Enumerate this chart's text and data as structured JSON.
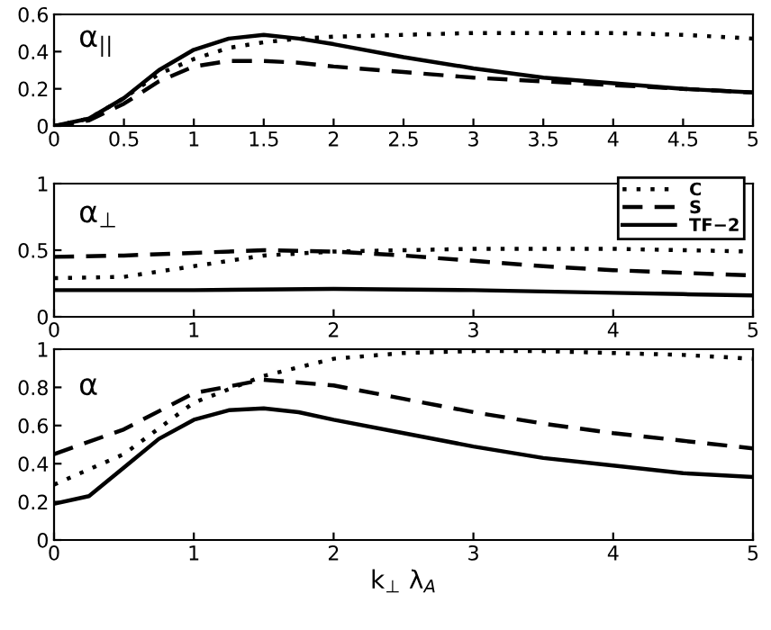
{
  "chart_data": [
    {
      "type": "line",
      "annotations": [
        "α$_{||}$"
      ],
      "xlim": [
        0,
        5
      ],
      "ylim": [
        0,
        0.6
      ],
      "xticks": [
        0,
        0.5,
        1,
        1.5,
        2,
        2.5,
        3,
        3.5,
        4,
        4.5,
        5
      ],
      "yticks": [
        0,
        0.2,
        0.4,
        0.6
      ],
      "grid": false,
      "legend": false,
      "series": [
        {
          "color": "#000000",
          "line_style": "dotted",
          "x": [
            0,
            0.25,
            0.5,
            0.75,
            1,
            1.25,
            1.5,
            1.75,
            2,
            2.5,
            3,
            3.5,
            4,
            4.5,
            5
          ],
          "values": [
            0,
            0.04,
            0.15,
            0.28,
            0.36,
            0.42,
            0.45,
            0.47,
            0.48,
            0.49,
            0.5,
            0.5,
            0.5,
            0.49,
            0.47
          ]
        },
        {
          "color": "#000000",
          "line_style": "dashed",
          "x": [
            0,
            0.25,
            0.5,
            0.75,
            1,
            1.25,
            1.5,
            1.75,
            2,
            2.5,
            3,
            3.5,
            4,
            4.5,
            5
          ],
          "values": [
            0,
            0.03,
            0.12,
            0.24,
            0.32,
            0.35,
            0.35,
            0.34,
            0.32,
            0.29,
            0.26,
            0.24,
            0.22,
            0.2,
            0.18
          ]
        },
        {
          "color": "#000000",
          "line_style": "solid",
          "x": [
            0,
            0.25,
            0.5,
            0.75,
            1,
            1.25,
            1.5,
            1.75,
            2,
            2.5,
            3,
            3.5,
            4,
            4.5,
            5
          ],
          "values": [
            0,
            0.04,
            0.15,
            0.3,
            0.41,
            0.47,
            0.49,
            0.47,
            0.44,
            0.37,
            0.31,
            0.26,
            0.23,
            0.2,
            0.18
          ]
        }
      ]
    },
    {
      "type": "line",
      "annotations": [
        "α$_{⊥}$"
      ],
      "xlim": [
        0,
        5
      ],
      "ylim": [
        0,
        1
      ],
      "xticks": [
        0,
        1,
        2,
        3,
        4,
        5
      ],
      "yticks": [
        0,
        0.5,
        1
      ],
      "grid": false,
      "legend": "top right",
      "series": [
        {
          "name": "C",
          "color": "#000000",
          "line_style": "dotted",
          "x": [
            0,
            0.5,
            1,
            1.5,
            2,
            2.5,
            3,
            3.5,
            4,
            4.5,
            5
          ],
          "values": [
            0.29,
            0.3,
            0.38,
            0.46,
            0.49,
            0.5,
            0.51,
            0.51,
            0.51,
            0.5,
            0.49
          ]
        },
        {
          "name": "S",
          "color": "#000000",
          "line_style": "dashed",
          "x": [
            0,
            0.5,
            1,
            1.5,
            2,
            2.5,
            3,
            3.5,
            4,
            4.5,
            5
          ],
          "values": [
            0.45,
            0.46,
            0.48,
            0.5,
            0.49,
            0.46,
            0.42,
            0.38,
            0.35,
            0.33,
            0.31
          ]
        },
        {
          "name": "TF−2",
          "color": "#000000",
          "line_style": "solid",
          "x": [
            0,
            1,
            2,
            3,
            3.5,
            4,
            4.5,
            5
          ],
          "values": [
            0.2,
            0.2,
            0.21,
            0.2,
            0.19,
            0.18,
            0.17,
            0.16
          ]
        }
      ]
    },
    {
      "type": "line",
      "annotations": [
        "α"
      ],
      "xlabel": "k$_{⊥}$ λ$_{A}$",
      "xlim": [
        0,
        5
      ],
      "ylim": [
        0,
        1
      ],
      "xticks": [
        0,
        1,
        2,
        3,
        4,
        5
      ],
      "yticks": [
        0,
        0.2,
        0.4,
        0.6,
        0.8,
        1
      ],
      "grid": false,
      "legend": false,
      "series": [
        {
          "color": "#000000",
          "line_style": "dotted",
          "x": [
            0,
            0.5,
            1,
            1.5,
            2,
            2.5,
            3,
            3.5,
            4,
            4.5,
            5
          ],
          "values": [
            0.29,
            0.45,
            0.72,
            0.86,
            0.95,
            0.98,
            0.99,
            0.99,
            0.98,
            0.97,
            0.95
          ]
        },
        {
          "color": "#000000",
          "line_style": "dashed",
          "x": [
            0,
            0.5,
            1,
            1.5,
            2,
            2.5,
            3,
            3.5,
            4,
            4.5,
            5
          ],
          "values": [
            0.45,
            0.58,
            0.77,
            0.84,
            0.81,
            0.74,
            0.67,
            0.61,
            0.56,
            0.52,
            0.48
          ]
        },
        {
          "color": "#000000",
          "line_style": "solid",
          "x": [
            0,
            0.25,
            0.5,
            0.75,
            1,
            1.25,
            1.5,
            1.75,
            2,
            2.5,
            3,
            3.5,
            4,
            4.5,
            5
          ],
          "values": [
            0.19,
            0.23,
            0.38,
            0.53,
            0.63,
            0.68,
            0.69,
            0.67,
            0.63,
            0.56,
            0.49,
            0.43,
            0.39,
            0.35,
            0.33
          ]
        }
      ]
    }
  ]
}
